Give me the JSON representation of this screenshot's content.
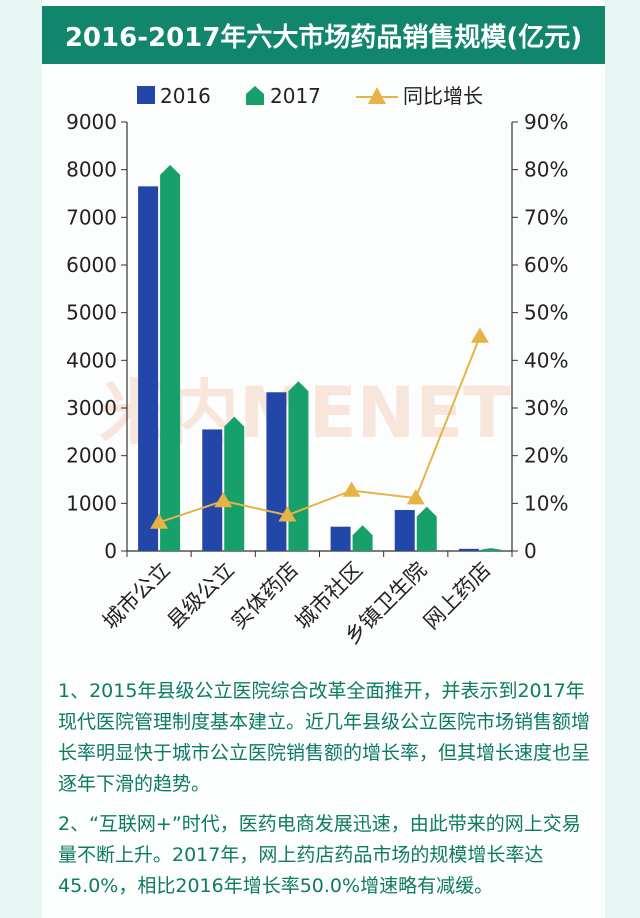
{
  "title": "2016-2017年六大市场药品销售规模(亿元)",
  "watermark": "米内MENET",
  "colors": {
    "s2016": "#2347a8",
    "s2017": "#17a06a",
    "growth": "#e6b347",
    "title_bg": "#11866d",
    "text": "#0e7a62"
  },
  "legend": [
    {
      "label": "2016",
      "marker": "square"
    },
    {
      "label": "2017",
      "marker": "pentagon"
    },
    {
      "label": "同比增长",
      "marker": "triangle-line"
    }
  ],
  "chart_data": {
    "type": "bar",
    "title": "2016-2017年六大市场药品销售规模(亿元)",
    "categories": [
      "城市公立",
      "县级公立",
      "实体药店",
      "城市社区",
      "乡镇卫生院",
      "网上药店"
    ],
    "series": [
      {
        "name": "2016",
        "type": "bar",
        "values": [
          7650,
          2550,
          3330,
          510,
          860,
          45
        ]
      },
      {
        "name": "2017",
        "type": "bar",
        "values": [
          8100,
          2820,
          3560,
          540,
          930,
          60
        ]
      },
      {
        "name": "同比增长",
        "type": "line",
        "axis": "right",
        "values": [
          6,
          10.5,
          7.5,
          12.7,
          11.1,
          45
        ]
      }
    ],
    "ylim": [
      0,
      9000
    ],
    "y2lim": [
      0,
      90
    ],
    "yticks": [
      "0",
      "1000",
      "2000",
      "3000",
      "4000",
      "5000",
      "6000",
      "7000",
      "8000",
      "9000"
    ],
    "y2ticks": [
      "0",
      "10%",
      "20%",
      "30%",
      "40%",
      "50%",
      "60%",
      "70%",
      "80%",
      "90%"
    ],
    "legend_position": "top",
    "grid": false
  },
  "notes": [
    "1、2015年县级公立医院综合改革全面推开，并表示到2017年现代医院管理制度基本建立。近几年县级公立医院市场销售额增长率明显快于城市公立医院销售额的增长率，但其增长速度也呈逐年下滑的趋势。",
    "2、“互联网+”时代，医药电商发展迅速，由此带来的网上交易量不断上升。2017年，网上药店药品市场的规模增长率达45.0%，相比2016年增长率50.0%增速略有减缓。"
  ]
}
